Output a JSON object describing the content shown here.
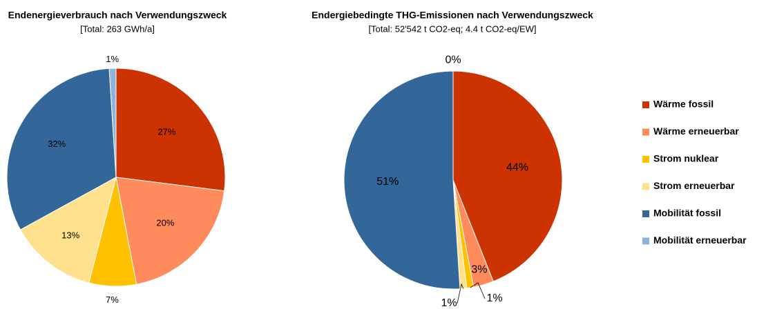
{
  "chart_data": [
    {
      "type": "pie",
      "title": "Endenergieverbrauch nach Verwendungszweck",
      "subtitle": "[Total: 263 GWh/a]",
      "categories": [
        "Wärme fossil",
        "Wärme erneuerbar",
        "Strom nuklear",
        "Strom erneuerbar",
        "Mobilität fossil",
        "Mobilität erneuerbar"
      ],
      "values": [
        27,
        20,
        7,
        13,
        32,
        1
      ],
      "value_labels": [
        "27%",
        "20%",
        "7%",
        "13%",
        "32%",
        "1%"
      ],
      "colors": [
        "#cc3300",
        "#ff8a5c",
        "#ffc000",
        "#ffe08c",
        "#336699",
        "#8fb4dc"
      ]
    },
    {
      "type": "pie",
      "title": "Endergiebedingte THG-Emissionen nach Verwendungszweck",
      "subtitle": "[Total: 52'542 t CO2-eq; 4.4 t CO2-eq/EW]",
      "categories": [
        "Wärme fossil",
        "Wärme erneuerbar",
        "Strom nuklear",
        "Strom erneuerbar",
        "Mobilität fossil",
        "Mobilität erneuerbar"
      ],
      "values": [
        44,
        3,
        1,
        1,
        51,
        0
      ],
      "value_labels": [
        "44%",
        "3%",
        "1%",
        "1%",
        "51%",
        "0%"
      ],
      "colors": [
        "#cc3300",
        "#ff8a5c",
        "#ffc000",
        "#ffe08c",
        "#336699",
        "#8fb4dc"
      ],
      "legend": "right"
    }
  ]
}
